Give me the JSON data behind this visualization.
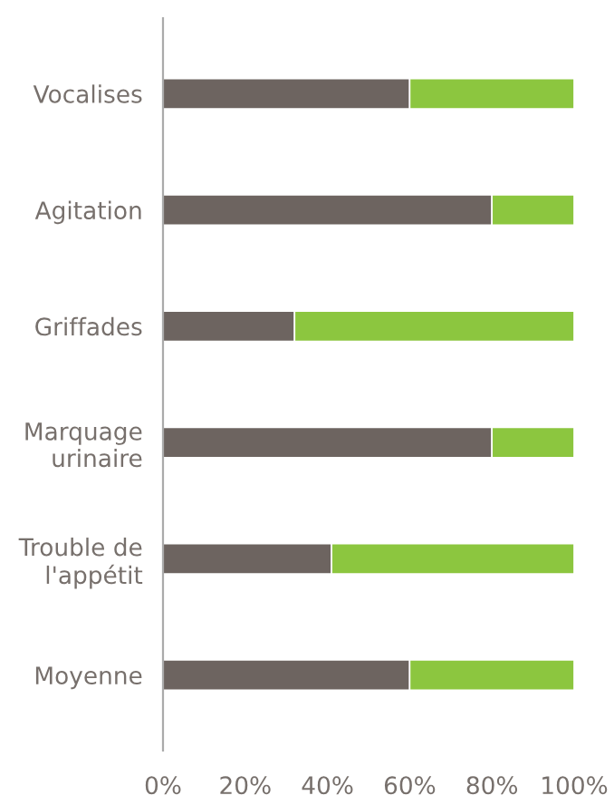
{
  "chart_data": {
    "type": "bar",
    "orientation": "horizontal",
    "stacked": true,
    "categories": [
      "Vocalises",
      "Agitation",
      "Griffades",
      "Marquage\nurinaire",
      "Trouble de\nl'appétit",
      "Moyenne"
    ],
    "series": [
      {
        "color": "#6d6460",
        "values": [
          60,
          80,
          32,
          80,
          41,
          60
        ]
      },
      {
        "color": "#8cc63f",
        "values": [
          40,
          20,
          68,
          20,
          59,
          40
        ]
      }
    ],
    "xlim": [
      0,
      100
    ],
    "xticks": [
      {
        "value": 0,
        "label": "0%"
      },
      {
        "value": 20,
        "label": "20%"
      },
      {
        "value": 40,
        "label": "40%"
      },
      {
        "value": 60,
        "label": "60%"
      },
      {
        "value": 80,
        "label": "80%"
      },
      {
        "value": 100,
        "label": "100%"
      }
    ],
    "grid": false,
    "legend": false
  }
}
